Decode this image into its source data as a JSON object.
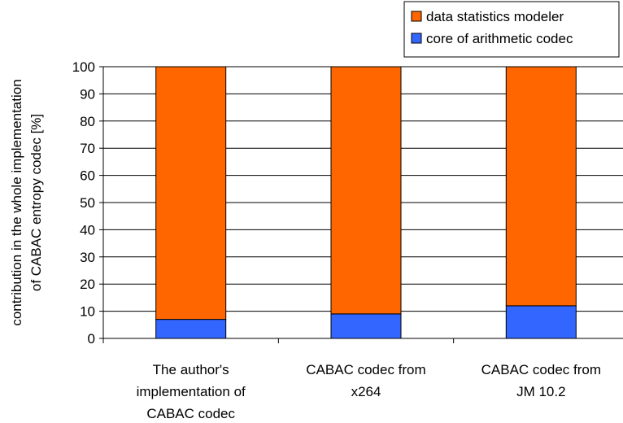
{
  "chart_data": {
    "type": "bar",
    "stacked": true,
    "categories": [
      [
        "The author's",
        "implementation of",
        "CABAC codec"
      ],
      [
        "CABAC codec from",
        "x264"
      ],
      [
        "CABAC codec from",
        "JM 10.2"
      ]
    ],
    "series": [
      {
        "name": "core of arithmetic codec",
        "color": "#3366FF",
        "values": [
          7,
          9,
          12
        ]
      },
      {
        "name": "data statistics modeler",
        "color": "#FF6600",
        "values": [
          93,
          91,
          88
        ]
      }
    ],
    "legend_order": [
      "data statistics modeler",
      "core of arithmetic codec"
    ],
    "legend_position": "top-right",
    "ylabel": [
      "contribution in the whole implementation",
      "of CABAC entropy codec [%]"
    ],
    "ylim": [
      0,
      100
    ],
    "yticks": [
      0,
      10,
      20,
      30,
      40,
      50,
      60,
      70,
      80,
      90,
      100
    ],
    "grid": true
  }
}
